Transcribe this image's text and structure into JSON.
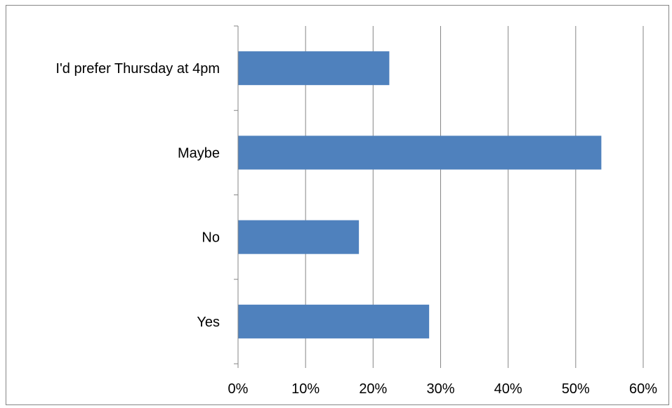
{
  "chart_data": {
    "type": "bar",
    "orientation": "horizontal",
    "categories": [
      "Yes",
      "No",
      "Maybe",
      "I'd prefer Thursday at 4pm"
    ],
    "values": [
      28.3,
      17.9,
      53.8,
      22.4
    ],
    "value_unit": "%",
    "xlim": [
      0,
      60
    ],
    "xticks": [
      "0%",
      "10%",
      "20%",
      "30%",
      "40%",
      "50%",
      "60%"
    ],
    "title": "",
    "xlabel": "",
    "ylabel": "",
    "grid": "vertical",
    "legend": "none",
    "bar_color": "#4F81BD"
  }
}
